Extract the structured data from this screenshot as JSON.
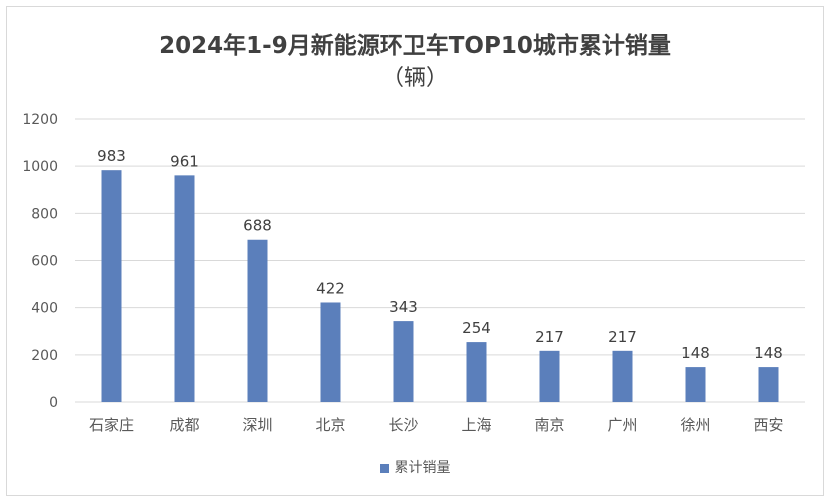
{
  "chart_data": {
    "type": "bar",
    "title": "2024年1-9月新能源环卫车TOP10城市累计销量",
    "subtitle": "（辆）",
    "categories": [
      "石家庄",
      "成都",
      "深圳",
      "北京",
      "长沙",
      "上海",
      "南京",
      "广州",
      "徐州",
      "西安"
    ],
    "series": [
      {
        "name": "累计销量",
        "values": [
          983,
          961,
          688,
          422,
          343,
          254,
          217,
          217,
          148,
          148
        ],
        "color": "#5b7fbb"
      }
    ],
    "ylim": [
      0,
      1200
    ],
    "yticks": [
      0,
      200,
      400,
      600,
      800,
      1000,
      1200
    ],
    "grid": true,
    "data_labels": true,
    "legend": "bottom"
  }
}
